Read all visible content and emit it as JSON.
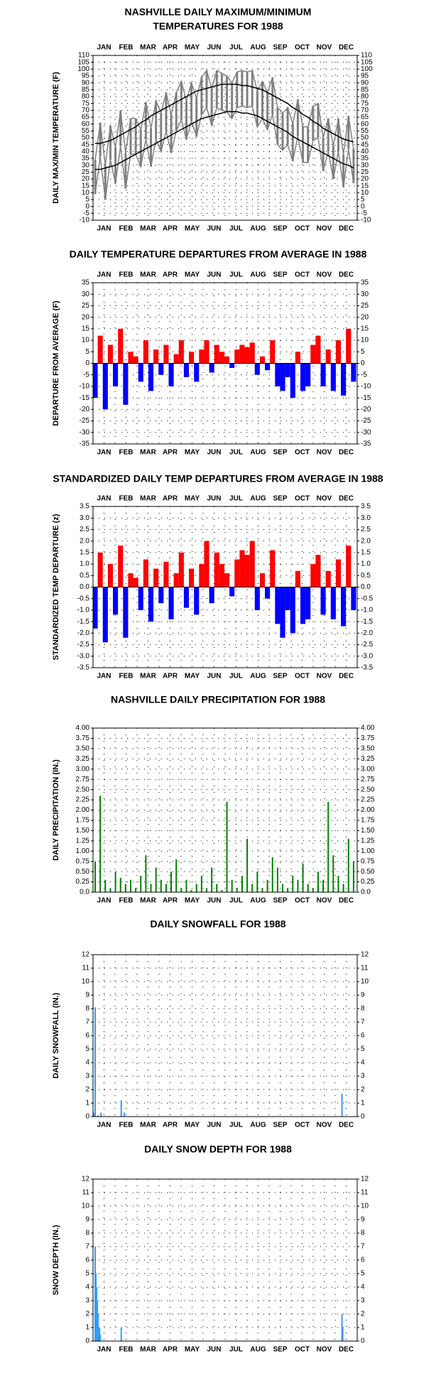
{
  "chart_data": [
    {
      "type": "line",
      "title": [
        "NASHVILLE DAILY MAXIMUM/MINIMUM",
        "TEMPERATURES FOR 1988"
      ],
      "ylabel": "DAILY MAX/MIN TEMPERATURE (F)",
      "month_labels": "both",
      "categories": [
        "JAN",
        "FEB",
        "MAR",
        "APR",
        "MAY",
        "JUN",
        "JUL",
        "AUG",
        "SEP",
        "OCT",
        "NOV",
        "DEC"
      ],
      "xlim": [
        1,
        366
      ],
      "ylim": [
        -10,
        110
      ],
      "yticks": [
        -10,
        -5,
        0,
        5,
        10,
        15,
        20,
        25,
        30,
        35,
        40,
        45,
        50,
        55,
        60,
        65,
        70,
        75,
        80,
        85,
        90,
        95,
        100,
        105,
        110
      ],
      "grid": true,
      "x": [
        4,
        11,
        18,
        25,
        32,
        39,
        46,
        53,
        60,
        67,
        74,
        81,
        88,
        95,
        102,
        109,
        116,
        123,
        130,
        137,
        144,
        151,
        158,
        165,
        172,
        179,
        186,
        193,
        200,
        207,
        214,
        221,
        228,
        235,
        242,
        249,
        256,
        263,
        270,
        277,
        284,
        291,
        298,
        305,
        312,
        319,
        326,
        333,
        340,
        347,
        354,
        361
      ],
      "series": [
        {
          "color": "#808080",
          "values": [
            34,
            61,
            30,
            59,
            43,
            70,
            39,
            64,
            64,
            56,
            76,
            57,
            77,
            68,
            83,
            67,
            83,
            91,
            77,
            90,
            79,
            94,
            99,
            86,
            99,
            97,
            95,
            90,
            98,
            99,
            98,
            99,
            84,
            91,
            83,
            94,
            72,
            68,
            72,
            60,
            78,
            58,
            58,
            73,
            75,
            50,
            64,
            44,
            64,
            38,
            66,
            42
          ]
        },
        {
          "color": "#808080",
          "values": [
            9,
            36,
            5,
            34,
            17,
            44,
            13,
            38,
            38,
            29,
            49,
            29,
            49,
            40,
            55,
            39,
            55,
            63,
            49,
            62,
            51,
            67,
            72,
            59,
            72,
            70,
            69,
            64,
            72,
            73,
            72,
            73,
            58,
            64,
            56,
            67,
            45,
            41,
            45,
            33,
            51,
            32,
            32,
            48,
            50,
            26,
            40,
            20,
            40,
            14,
            42,
            17
          ]
        },
        {
          "color": "#000000",
          "values": [
            46,
            46,
            47,
            48,
            50,
            52,
            54,
            56,
            58,
            61,
            63,
            66,
            68,
            70,
            72,
            74,
            76,
            78,
            80,
            82,
            84,
            85,
            86,
            87,
            88,
            89,
            89,
            89,
            89,
            88,
            88,
            87,
            86,
            85,
            83,
            81,
            79,
            77,
            75,
            72,
            70,
            67,
            65,
            62,
            60,
            57,
            55,
            53,
            51,
            49,
            48,
            47
          ]
        },
        {
          "color": "#000000",
          "values": [
            27,
            27,
            28,
            29,
            30,
            32,
            34,
            36,
            38,
            40,
            42,
            44,
            46,
            48,
            50,
            52,
            54,
            56,
            58,
            60,
            62,
            64,
            65,
            66,
            67,
            68,
            69,
            69,
            69,
            68,
            68,
            67,
            66,
            64,
            62,
            60,
            58,
            56,
            54,
            51,
            49,
            47,
            45,
            43,
            41,
            39,
            37,
            35,
            33,
            31,
            30,
            28
          ]
        }
      ]
    },
    {
      "type": "bar",
      "title": [
        "DAILY TEMPERATURE DEPARTURES FROM AVERAGE IN 1988"
      ],
      "ylabel": "DEPARTURE FROM AVERAGE (F)",
      "month_labels": "both",
      "categories": [
        "JAN",
        "FEB",
        "MAR",
        "APR",
        "MAY",
        "JUN",
        "JUL",
        "AUG",
        "SEP",
        "OCT",
        "NOV",
        "DEC"
      ],
      "xlim": [
        1,
        366
      ],
      "ylim": [
        -35,
        35
      ],
      "yticks": [
        -35,
        -30,
        -25,
        -20,
        -15,
        -10,
        -5,
        0,
        5,
        10,
        15,
        20,
        25,
        30,
        35
      ],
      "grid": true,
      "positive_color": "#ff0000",
      "negative_color": "#0000ff",
      "x": [
        4,
        11,
        18,
        25,
        32,
        39,
        46,
        53,
        60,
        67,
        74,
        81,
        88,
        95,
        102,
        109,
        116,
        123,
        130,
        137,
        144,
        151,
        158,
        165,
        172,
        179,
        186,
        193,
        200,
        207,
        214,
        221,
        228,
        235,
        242,
        249,
        256,
        263,
        270,
        277,
        284,
        291,
        298,
        305,
        312,
        319,
        326,
        333,
        340,
        347,
        354,
        361
      ],
      "series": [
        {
          "values": [
            -15,
            12,
            -20,
            8,
            -10,
            15,
            -18,
            5,
            3,
            -8,
            10,
            -12,
            6,
            -5,
            8,
            -10,
            4,
            10,
            -6,
            5,
            -8,
            6,
            10,
            -4,
            8,
            5,
            3,
            -2,
            6,
            8,
            7,
            9,
            -5,
            3,
            -3,
            10,
            -10,
            -12,
            -6,
            -15,
            5,
            -12,
            -10,
            8,
            12,
            -10,
            6,
            -12,
            10,
            -14,
            15,
            -8
          ]
        }
      ]
    },
    {
      "type": "bar",
      "title": [
        "STANDARDIZED DAILY TEMP DEPARTURES FROM AVERAGE IN 1988"
      ],
      "ylabel": "STANDARDIZED TEMP DEPARTURE (z)",
      "month_labels": "both",
      "categories": [
        "JAN",
        "FEB",
        "MAR",
        "APR",
        "MAY",
        "JUN",
        "JUL",
        "AUG",
        "SEP",
        "OCT",
        "NOV",
        "DEC"
      ],
      "xlim": [
        1,
        366
      ],
      "ylim": [
        -3.5,
        3.5
      ],
      "yticks": [
        -3.5,
        {
          "value": -3,
          "label": "-3.0"
        },
        -2.5,
        {
          "value": -2,
          "label": "-2.0"
        },
        -1.5,
        {
          "value": -1,
          "label": "-1.0"
        },
        -0.5,
        {
          "value": 0,
          "label": "0.0"
        },
        0.5,
        {
          "value": 1,
          "label": "1.0"
        },
        1.5,
        {
          "value": 2,
          "label": "2.0"
        },
        2.5,
        {
          "value": 3,
          "label": "3.0"
        },
        3.5
      ],
      "grid": true,
      "positive_color": "#ff0000",
      "negative_color": "#0000ff",
      "x": [
        4,
        11,
        18,
        25,
        32,
        39,
        46,
        53,
        60,
        67,
        74,
        81,
        88,
        95,
        102,
        109,
        116,
        123,
        130,
        137,
        144,
        151,
        158,
        165,
        172,
        179,
        186,
        193,
        200,
        207,
        214,
        221,
        228,
        235,
        242,
        249,
        256,
        263,
        270,
        277,
        284,
        291,
        298,
        305,
        312,
        319,
        326,
        333,
        340,
        347,
        354,
        361
      ],
      "series": [
        {
          "values": [
            -1.8,
            1.5,
            -2.4,
            1.0,
            -1.2,
            1.8,
            -2.2,
            0.6,
            0.4,
            -1.0,
            1.2,
            -1.5,
            0.8,
            -0.7,
            1.1,
            -1.4,
            0.6,
            1.5,
            -0.9,
            0.8,
            -1.2,
            1.0,
            2.0,
            -0.7,
            1.5,
            1.0,
            0.6,
            -0.4,
            1.2,
            1.6,
            1.4,
            2.0,
            -1.0,
            0.6,
            -0.5,
            1.6,
            -1.6,
            -2.2,
            -1.0,
            -2.0,
            0.7,
            -1.6,
            -1.4,
            1.0,
            1.4,
            -1.2,
            0.7,
            -1.4,
            1.2,
            -1.7,
            1.8,
            -1.0
          ]
        }
      ]
    },
    {
      "type": "bar",
      "title": [
        "NASHVILLE DAILY PRECIPITATION FOR 1988"
      ],
      "ylabel": "DAILY PRECIPITATION (IN.)",
      "month_labels": "bottom",
      "categories": [
        "JAN",
        "FEB",
        "MAR",
        "APR",
        "MAY",
        "JUN",
        "JUL",
        "AUG",
        "SEP",
        "OCT",
        "NOV",
        "DEC"
      ],
      "xlim": [
        1,
        366
      ],
      "ylim": [
        0,
        4
      ],
      "yticks": [
        {
          "value": 0,
          "label": "0.0"
        },
        0.25,
        {
          "value": 0.5,
          "label": "0.50"
        },
        0.75,
        {
          "value": 1,
          "label": "1.00"
        },
        1.25,
        {
          "value": 1.5,
          "label": "1.50"
        },
        1.75,
        {
          "value": 2,
          "label": "2.00"
        },
        2.25,
        {
          "value": 2.5,
          "label": "2.50"
        },
        2.75,
        {
          "value": 3,
          "label": "3.00"
        },
        3.25,
        {
          "value": 3.5,
          "label": "3.50"
        },
        3.75,
        {
          "value": 4,
          "label": "4.00"
        }
      ],
      "grid": true,
      "x": [
        4,
        11,
        18,
        25,
        32,
        39,
        46,
        53,
        60,
        67,
        74,
        81,
        88,
        95,
        102,
        109,
        116,
        123,
        130,
        137,
        144,
        151,
        158,
        165,
        172,
        179,
        186,
        193,
        200,
        207,
        214,
        221,
        228,
        235,
        242,
        249,
        256,
        263,
        270,
        277,
        284,
        291,
        298,
        305,
        312,
        319,
        326,
        333,
        340,
        347,
        354,
        361
      ],
      "series": [
        {
          "color": "#008000",
          "values": [
            0.75,
            2.35,
            0.3,
            0.1,
            0.5,
            0.35,
            0.2,
            0.3,
            0.1,
            0.4,
            0.9,
            0.2,
            0.6,
            0.3,
            0.2,
            0.5,
            0.8,
            0.1,
            0.3,
            0.05,
            0.2,
            0.4,
            0.1,
            0.6,
            0.2,
            0.05,
            2.2,
            0.3,
            0.1,
            0.4,
            1.3,
            0.2,
            0.5,
            0.1,
            0.3,
            0.85,
            0.6,
            0.2,
            0.1,
            0.4,
            0.3,
            0.7,
            0.2,
            0.1,
            0.5,
            0.3,
            2.2,
            0.9,
            0.4,
            0.2,
            1.3,
            0.75
          ]
        }
      ]
    },
    {
      "type": "bar",
      "title": [
        "DAILY SNOWFALL FOR 1988"
      ],
      "ylabel": "DAILY SNOWFALL (IN.)",
      "month_labels": "bottom",
      "categories": [
        "JAN",
        "FEB",
        "MAR",
        "APR",
        "MAY",
        "JUN",
        "JUL",
        "AUG",
        "SEP",
        "OCT",
        "NOV",
        "DEC"
      ],
      "xlim": [
        1,
        366
      ],
      "ylim": [
        0,
        12
      ],
      "yticks": [
        0,
        1,
        2,
        3,
        4,
        5,
        6,
        7,
        8,
        9,
        10,
        11,
        12
      ],
      "grid": true,
      "x": [
        2,
        4,
        8,
        12,
        40,
        44,
        345
      ],
      "series": [
        {
          "color": "#3399ff",
          "values": [
            0.3,
            8.1,
            0.1,
            0.3,
            1.2,
            0.3,
            1.7
          ]
        }
      ]
    },
    {
      "type": "bar",
      "title": [
        "DAILY SNOW DEPTH FOR 1988"
      ],
      "ylabel": "SNOW DEPTH (IN.)",
      "month_labels": "bottom",
      "categories": [
        "JAN",
        "FEB",
        "MAR",
        "APR",
        "MAY",
        "JUN",
        "JUL",
        "AUG",
        "SEP",
        "OCT",
        "NOV",
        "DEC"
      ],
      "xlim": [
        1,
        366
      ],
      "ylim": [
        0,
        12
      ],
      "yticks": [
        0,
        1,
        2,
        3,
        4,
        5,
        6,
        7,
        8,
        9,
        10,
        11,
        12
      ],
      "grid": true,
      "x": [
        4,
        5,
        6,
        7,
        8,
        9,
        10,
        11,
        40,
        345,
        346
      ],
      "series": [
        {
          "color": "#3399ff",
          "values": [
            7,
            5,
            4,
            3,
            2,
            1,
            1,
            0.5,
            1,
            2,
            1
          ]
        }
      ]
    }
  ]
}
